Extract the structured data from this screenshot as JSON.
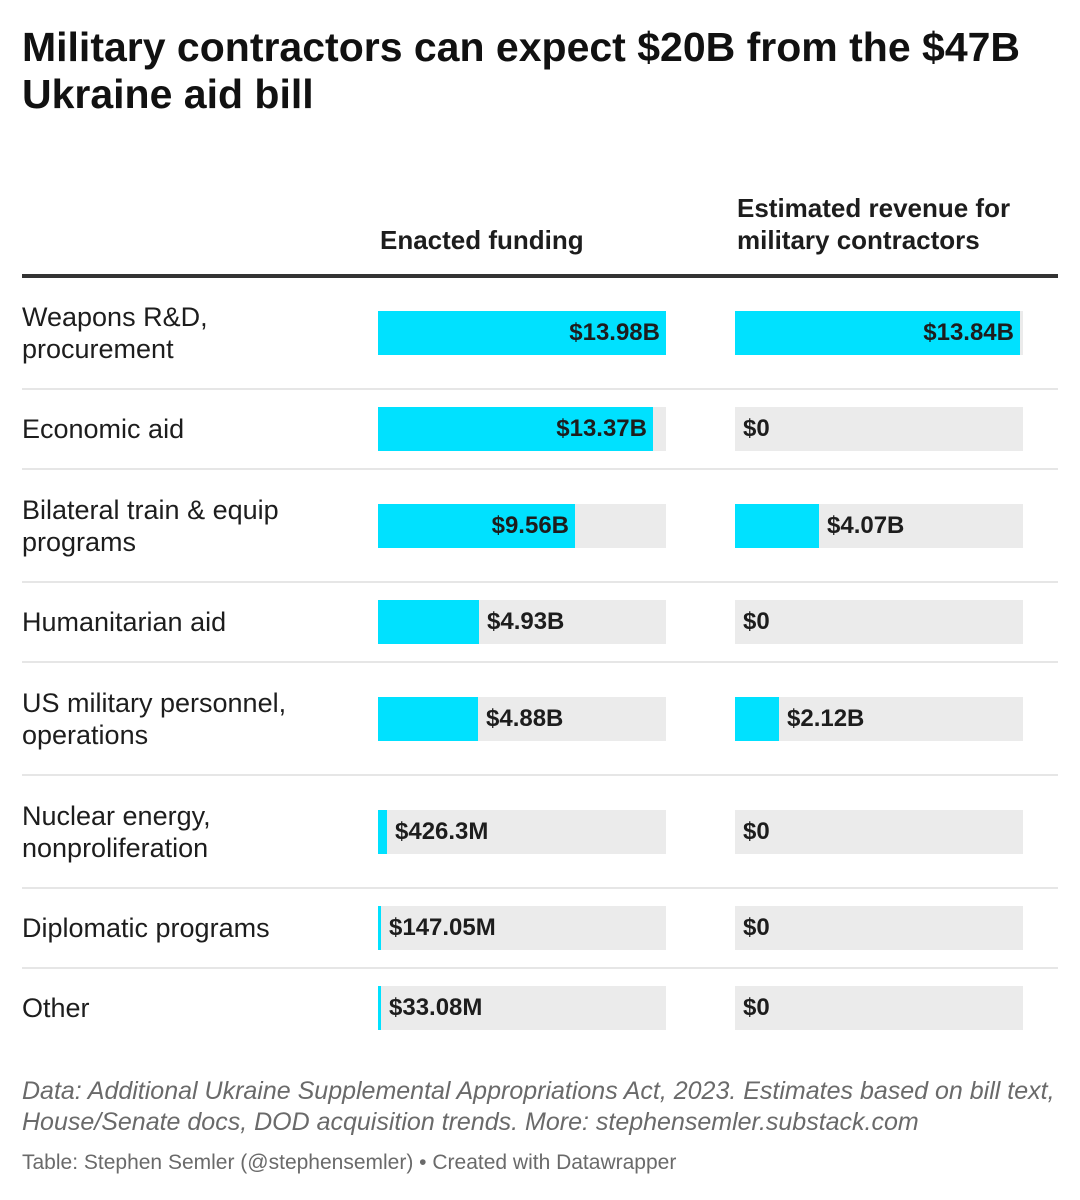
{
  "chart_data": {
    "type": "table",
    "title": "Military contractors can expect $20B from the $47B Ukraine aid bill",
    "columns": [
      "Enacted funding",
      "Estimated revenue for military contractors"
    ],
    "max_value": 14.0,
    "unit": "billions USD",
    "rows": [
      {
        "label": "Weapons R&D, procurement",
        "enacted": 13.98,
        "enacted_label": "$13.98B",
        "revenue": 13.84,
        "revenue_label": "$13.84B"
      },
      {
        "label": "Economic aid",
        "enacted": 13.37,
        "enacted_label": "$13.37B",
        "revenue": 0,
        "revenue_label": "$0"
      },
      {
        "label": "Bilateral train & equip programs",
        "enacted": 9.56,
        "enacted_label": "$9.56B",
        "revenue": 4.07,
        "revenue_label": "$4.07B"
      },
      {
        "label": "Humanitarian aid",
        "enacted": 4.93,
        "enacted_label": "$4.93B",
        "revenue": 0,
        "revenue_label": "$0"
      },
      {
        "label": "US military personnel, operations",
        "enacted": 4.88,
        "enacted_label": "$4.88B",
        "revenue": 2.12,
        "revenue_label": "$2.12B"
      },
      {
        "label": "Nuclear energy, nonproliferation",
        "enacted": 0.4263,
        "enacted_label": "$426.3M",
        "revenue": 0,
        "revenue_label": "$0"
      },
      {
        "label": "Diplomatic programs",
        "enacted": 0.14705,
        "enacted_label": "$147.05M",
        "revenue": 0,
        "revenue_label": "$0"
      },
      {
        "label": "Other",
        "enacted": 0.03308,
        "enacted_label": "$33.08M",
        "revenue": 0,
        "revenue_label": "$0"
      }
    ]
  },
  "footer": {
    "note": "Data: Additional Ukraine Supplemental Appropriations Act, 2023. Estimates based on bill text, House/Senate docs, DOD acquisition trends. More: stephensemler.substack.com",
    "credit": "Table: Stephen Semler (@stephensemler) • Created with Datawrapper"
  },
  "colors": {
    "bar": "#00e1ff",
    "track": "#ebebeb",
    "rule": "#333333"
  }
}
